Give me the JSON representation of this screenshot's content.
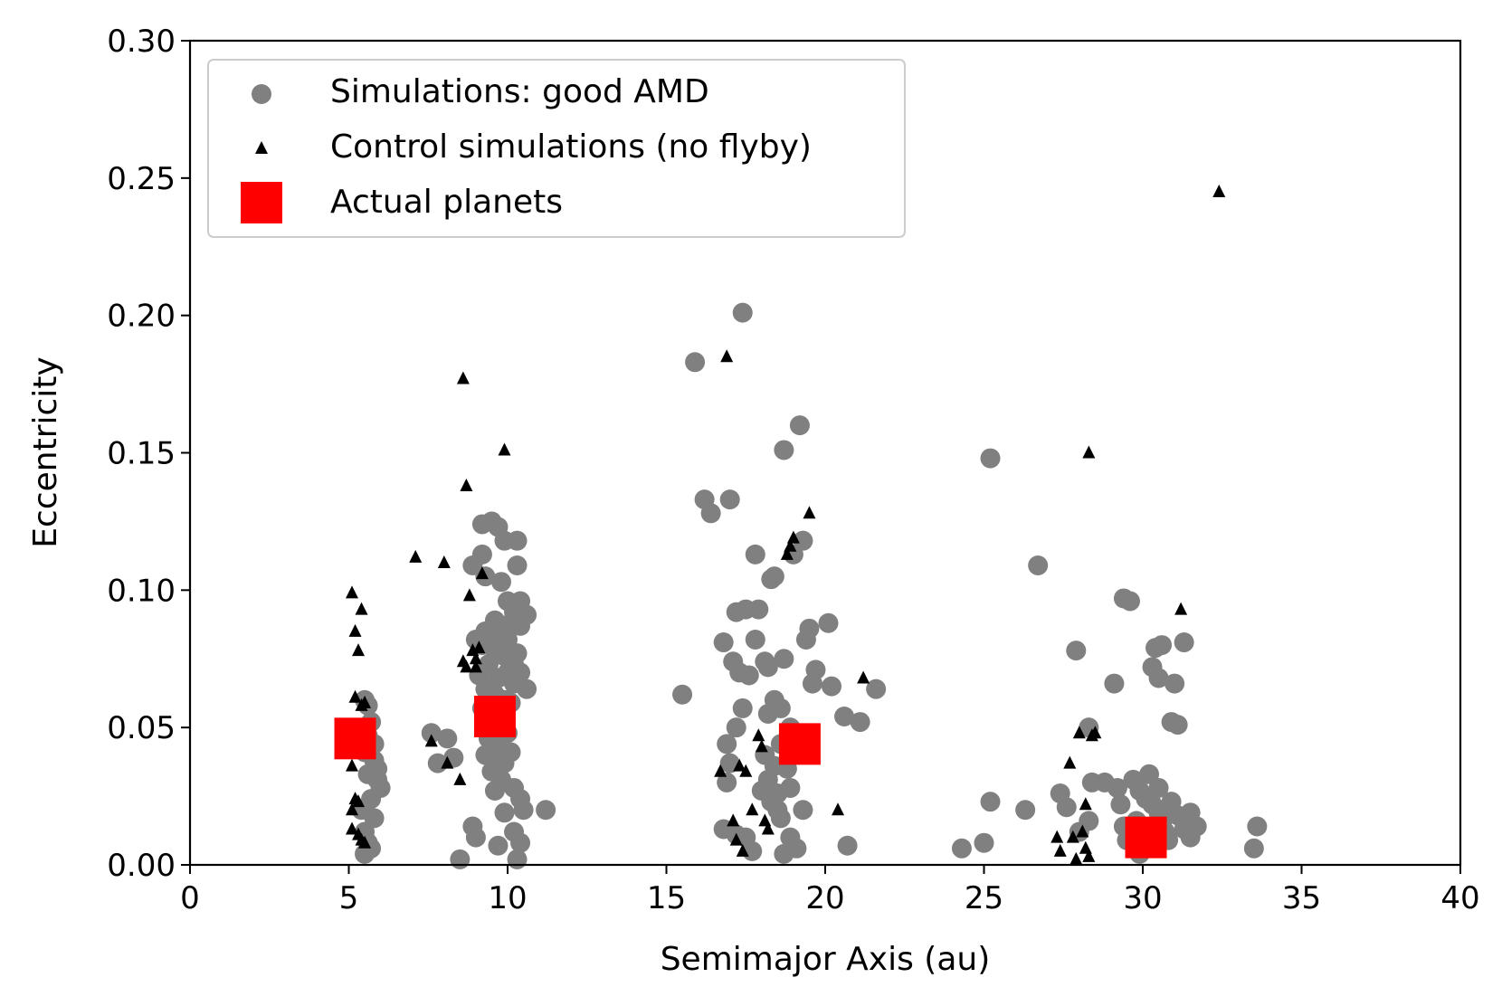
{
  "colors": {
    "simulations": "#808080",
    "control": "#000000",
    "actual": "#ff0000",
    "axis": "#000000",
    "legend_border": "#cccccc"
  },
  "chart_data": {
    "type": "scatter",
    "title": "",
    "xlabel": "Semimajor Axis (au)",
    "ylabel": "Eccentricity",
    "xlim": [
      0,
      40
    ],
    "ylim": [
      0,
      0.3
    ],
    "xticks": [
      0,
      5,
      10,
      15,
      20,
      25,
      30,
      35,
      40
    ],
    "xtick_labels": [
      "0",
      "5",
      "10",
      "15",
      "20",
      "25",
      "30",
      "35",
      "40"
    ],
    "yticks": [
      0,
      0.05,
      0.1,
      0.15,
      0.2,
      0.25,
      0.3
    ],
    "ytick_labels": [
      "0.00",
      "0.05",
      "0.10",
      "0.15",
      "0.20",
      "0.25",
      "0.30"
    ],
    "grid": false,
    "legend_position": "upper-left",
    "series": [
      {
        "name": "Simulations: good AMD",
        "marker": "circle",
        "color": "#808080",
        "points": [
          [
            5.5,
            0.06
          ],
          [
            5.6,
            0.058
          ],
          [
            5.7,
            0.052
          ],
          [
            5.8,
            0.044
          ],
          [
            5.9,
            0.035
          ],
          [
            5.5,
            0.041
          ],
          [
            5.6,
            0.033
          ],
          [
            6.0,
            0.028
          ],
          [
            5.7,
            0.024
          ],
          [
            5.8,
            0.017
          ],
          [
            5.5,
            0.012
          ],
          [
            5.6,
            0.008
          ],
          [
            5.5,
            0.004
          ],
          [
            5.7,
            0.006
          ],
          [
            5.4,
            0.02
          ],
          [
            5.9,
            0.031
          ],
          [
            5.6,
            0.047
          ],
          [
            5.8,
            0.038
          ],
          [
            7.6,
            0.048
          ],
          [
            7.8,
            0.037
          ],
          [
            8.1,
            0.046
          ],
          [
            8.3,
            0.039
          ],
          [
            8.5,
            0.002
          ],
          [
            8.9,
            0.014
          ],
          [
            9.0,
            0.01
          ],
          [
            9.2,
            0.124
          ],
          [
            9.5,
            0.125
          ],
          [
            9.7,
            0.123
          ],
          [
            9.9,
            0.118
          ],
          [
            10.3,
            0.118
          ],
          [
            10.3,
            0.109
          ],
          [
            9.2,
            0.113
          ],
          [
            8.9,
            0.109
          ],
          [
            9.3,
            0.105
          ],
          [
            9.8,
            0.103
          ],
          [
            10.0,
            0.096
          ],
          [
            10.4,
            0.096
          ],
          [
            10.2,
            0.092
          ],
          [
            10.6,
            0.091
          ],
          [
            9.6,
            0.089
          ],
          [
            10.1,
            0.088
          ],
          [
            10.4,
            0.087
          ],
          [
            9.3,
            0.085
          ],
          [
            9.7,
            0.084
          ],
          [
            10.0,
            0.082
          ],
          [
            9.0,
            0.082
          ],
          [
            9.2,
            0.08
          ],
          [
            9.6,
            0.078
          ],
          [
            10.3,
            0.077
          ],
          [
            9.9,
            0.076
          ],
          [
            10.2,
            0.073
          ],
          [
            9.4,
            0.073
          ],
          [
            10.0,
            0.07
          ],
          [
            10.4,
            0.07
          ],
          [
            9.1,
            0.069
          ],
          [
            9.7,
            0.068
          ],
          [
            10.2,
            0.066
          ],
          [
            10.6,
            0.064
          ],
          [
            9.3,
            0.064
          ],
          [
            9.6,
            0.062
          ],
          [
            9.9,
            0.06
          ],
          [
            10.1,
            0.059
          ],
          [
            9.2,
            0.057
          ],
          [
            9.5,
            0.054
          ],
          [
            9.8,
            0.05
          ],
          [
            10.0,
            0.048
          ],
          [
            9.4,
            0.046
          ],
          [
            9.7,
            0.043
          ],
          [
            10.1,
            0.041
          ],
          [
            9.3,
            0.04
          ],
          [
            9.6,
            0.038
          ],
          [
            9.9,
            0.037
          ],
          [
            9.5,
            0.034
          ],
          [
            9.8,
            0.031
          ],
          [
            10.2,
            0.028
          ],
          [
            10.4,
            0.024
          ],
          [
            10.5,
            0.02
          ],
          [
            11.2,
            0.02
          ],
          [
            9.6,
            0.027
          ],
          [
            9.9,
            0.019
          ],
          [
            10.2,
            0.012
          ],
          [
            10.4,
            0.008
          ],
          [
            10.3,
            0.002
          ],
          [
            9.7,
            0.007
          ],
          [
            9.4,
            0.047
          ],
          [
            15.5,
            0.062
          ],
          [
            15.9,
            0.183
          ],
          [
            16.2,
            0.133
          ],
          [
            16.4,
            0.128
          ],
          [
            17.0,
            0.133
          ],
          [
            17.4,
            0.201
          ],
          [
            16.8,
            0.081
          ],
          [
            17.1,
            0.074
          ],
          [
            17.2,
            0.092
          ],
          [
            17.5,
            0.093
          ],
          [
            17.3,
            0.07
          ],
          [
            17.6,
            0.069
          ],
          [
            17.8,
            0.113
          ],
          [
            17.9,
            0.093
          ],
          [
            17.8,
            0.082
          ],
          [
            18.1,
            0.074
          ],
          [
            18.3,
            0.104
          ],
          [
            18.4,
            0.105
          ],
          [
            18.2,
            0.072
          ],
          [
            18.7,
            0.075
          ],
          [
            18.4,
            0.06
          ],
          [
            18.6,
            0.057
          ],
          [
            18.2,
            0.055
          ],
          [
            17.4,
            0.057
          ],
          [
            17.2,
            0.05
          ],
          [
            16.9,
            0.044
          ],
          [
            17.0,
            0.037
          ],
          [
            16.9,
            0.03
          ],
          [
            16.8,
            0.013
          ],
          [
            17.2,
            0.011
          ],
          [
            17.5,
            0.01
          ],
          [
            17.7,
            0.005
          ],
          [
            18.2,
            0.031
          ],
          [
            18.0,
            0.027
          ],
          [
            18.3,
            0.023
          ],
          [
            18.5,
            0.02
          ],
          [
            18.6,
            0.017
          ],
          [
            18.9,
            0.028
          ],
          [
            18.8,
            0.035
          ],
          [
            18.9,
            0.01
          ],
          [
            18.7,
            0.004
          ],
          [
            19.1,
            0.006
          ],
          [
            18.6,
            0.044
          ],
          [
            18.4,
            0.036
          ],
          [
            18.1,
            0.04
          ],
          [
            18.5,
            0.026
          ],
          [
            18.7,
            0.151
          ],
          [
            19.2,
            0.16
          ],
          [
            19.0,
            0.113
          ],
          [
            19.3,
            0.118
          ],
          [
            19.4,
            0.082
          ],
          [
            19.5,
            0.086
          ],
          [
            19.6,
            0.066
          ],
          [
            19.7,
            0.071
          ],
          [
            20.1,
            0.088
          ],
          [
            20.2,
            0.065
          ],
          [
            20.6,
            0.054
          ],
          [
            21.1,
            0.052
          ],
          [
            21.6,
            0.064
          ],
          [
            20.7,
            0.007
          ],
          [
            19.3,
            0.02
          ],
          [
            18.9,
            0.05
          ],
          [
            24.3,
            0.006
          ],
          [
            25.0,
            0.008
          ],
          [
            25.2,
            0.148
          ],
          [
            25.2,
            0.023
          ],
          [
            26.3,
            0.02
          ],
          [
            26.7,
            0.109
          ],
          [
            27.4,
            0.026
          ],
          [
            27.6,
            0.021
          ],
          [
            28.0,
            0.012
          ],
          [
            27.9,
            0.078
          ],
          [
            28.3,
            0.016
          ],
          [
            28.3,
            0.05
          ],
          [
            28.4,
            0.03
          ],
          [
            28.8,
            0.03
          ],
          [
            29.2,
            0.028
          ],
          [
            29.1,
            0.066
          ],
          [
            29.4,
            0.097
          ],
          [
            29.6,
            0.096
          ],
          [
            29.3,
            0.022
          ],
          [
            29.4,
            0.014
          ],
          [
            29.5,
            0.009
          ],
          [
            29.7,
            0.031
          ],
          [
            29.9,
            0.027
          ],
          [
            30.1,
            0.024
          ],
          [
            30.3,
            0.022
          ],
          [
            30.5,
            0.019
          ],
          [
            30.6,
            0.015
          ],
          [
            30.7,
            0.012
          ],
          [
            30.8,
            0.009
          ],
          [
            30.9,
            0.023
          ],
          [
            31.1,
            0.018
          ],
          [
            31.3,
            0.013
          ],
          [
            31.5,
            0.01
          ],
          [
            31.7,
            0.014
          ],
          [
            31.5,
            0.019
          ],
          [
            30.5,
            0.028
          ],
          [
            30.4,
            0.079
          ],
          [
            30.6,
            0.08
          ],
          [
            30.3,
            0.072
          ],
          [
            30.5,
            0.068
          ],
          [
            31.0,
            0.066
          ],
          [
            30.9,
            0.052
          ],
          [
            31.1,
            0.051
          ],
          [
            31.3,
            0.081
          ],
          [
            33.5,
            0.006
          ],
          [
            33.6,
            0.014
          ],
          [
            30.2,
            0.007
          ],
          [
            29.9,
            0.004
          ],
          [
            29.8,
            0.016
          ],
          [
            30.2,
            0.033
          ]
        ]
      },
      {
        "name": "Control simulations (no flyby)",
        "marker": "triangle",
        "color": "#000000",
        "points": [
          [
            5.1,
            0.099
          ],
          [
            5.2,
            0.085
          ],
          [
            5.3,
            0.078
          ],
          [
            5.4,
            0.093
          ],
          [
            5.2,
            0.061
          ],
          [
            5.4,
            0.058
          ],
          [
            5.5,
            0.059
          ],
          [
            5.1,
            0.036
          ],
          [
            5.2,
            0.024
          ],
          [
            5.1,
            0.02
          ],
          [
            5.3,
            0.023
          ],
          [
            5.1,
            0.013
          ],
          [
            5.3,
            0.011
          ],
          [
            5.4,
            0.009
          ],
          [
            5.5,
            0.008
          ],
          [
            7.1,
            0.112
          ],
          [
            7.6,
            0.045
          ],
          [
            8.0,
            0.11
          ],
          [
            8.1,
            0.037
          ],
          [
            8.5,
            0.031
          ],
          [
            8.6,
            0.177
          ],
          [
            8.7,
            0.138
          ],
          [
            8.8,
            0.098
          ],
          [
            8.6,
            0.074
          ],
          [
            8.7,
            0.072
          ],
          [
            8.9,
            0.078
          ],
          [
            9.0,
            0.075
          ],
          [
            9.0,
            0.072
          ],
          [
            9.1,
            0.079
          ],
          [
            9.2,
            0.106
          ],
          [
            9.4,
            0.058
          ],
          [
            9.5,
            0.052
          ],
          [
            9.9,
            0.151
          ],
          [
            16.7,
            0.034
          ],
          [
            16.9,
            0.185
          ],
          [
            17.1,
            0.016
          ],
          [
            17.2,
            0.009
          ],
          [
            17.3,
            0.036
          ],
          [
            17.5,
            0.034
          ],
          [
            17.4,
            0.005
          ],
          [
            17.7,
            0.02
          ],
          [
            17.9,
            0.047
          ],
          [
            18.0,
            0.043
          ],
          [
            18.1,
            0.016
          ],
          [
            18.2,
            0.013
          ],
          [
            18.8,
            0.113
          ],
          [
            18.9,
            0.116
          ],
          [
            19.0,
            0.119
          ],
          [
            19.5,
            0.128
          ],
          [
            20.4,
            0.02
          ],
          [
            21.2,
            0.068
          ],
          [
            27.3,
            0.01
          ],
          [
            27.4,
            0.005
          ],
          [
            27.7,
            0.037
          ],
          [
            27.8,
            0.01
          ],
          [
            27.9,
            0.002
          ],
          [
            28.0,
            0.048
          ],
          [
            28.1,
            0.012
          ],
          [
            28.2,
            0.006
          ],
          [
            28.2,
            0.022
          ],
          [
            28.3,
            0.003
          ],
          [
            28.3,
            0.15
          ],
          [
            28.4,
            0.047
          ],
          [
            28.5,
            0.048
          ],
          [
            31.2,
            0.093
          ],
          [
            32.4,
            0.245
          ]
        ]
      },
      {
        "name": "Actual planets",
        "marker": "square",
        "color": "#ff0000",
        "points": [
          [
            5.2,
            0.046
          ],
          [
            9.6,
            0.054
          ],
          [
            19.2,
            0.044
          ],
          [
            30.1,
            0.01
          ]
        ]
      }
    ]
  }
}
